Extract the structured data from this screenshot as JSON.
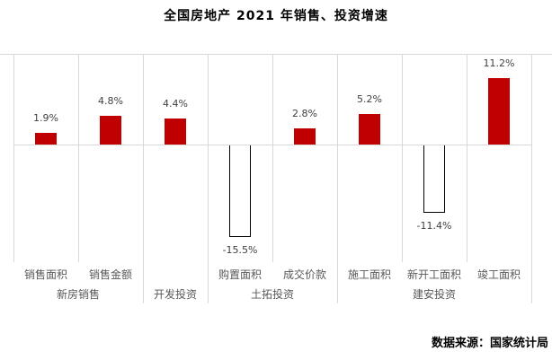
{
  "title": "全国房地产 2021 年销售、投资增速",
  "source": "数据来源：国家统计局",
  "chart_data": {
    "type": "bar",
    "title": "全国房地产 2021 年销售、投资增速",
    "unit": "%",
    "categories": [
      "销售面积",
      "销售金额",
      "",
      "购置面积",
      "成交价款",
      "施工面积",
      "新开工面积",
      "竣工面积"
    ],
    "values": [
      1.9,
      4.8,
      4.4,
      -15.5,
      2.8,
      5.2,
      -11.4,
      11.2
    ],
    "value_labels": [
      "1.9%",
      "4.8%",
      "4.4%",
      "-15.5%",
      "2.8%",
      "5.2%",
      "-11.4%",
      "11.2%"
    ],
    "groups": [
      {
        "label": "新房销售",
        "span": 2
      },
      {
        "label": "开发投资",
        "span": 1
      },
      {
        "label": "土拓投资",
        "span": 2
      },
      {
        "label": "建安投资",
        "span": 3
      }
    ],
    "source": "数据来源：国家统计局",
    "bar_color": "#c00000",
    "negative_bar_style": "hollow white fill with black outline",
    "gridline_color": "#d9d9d9",
    "value_label_color": "#404040",
    "axis_label_color": "#595959",
    "grid": "vertical column separators on, horizontal only top edge and zero line",
    "legend": "none",
    "ylabel": "",
    "xlabel": ""
  }
}
